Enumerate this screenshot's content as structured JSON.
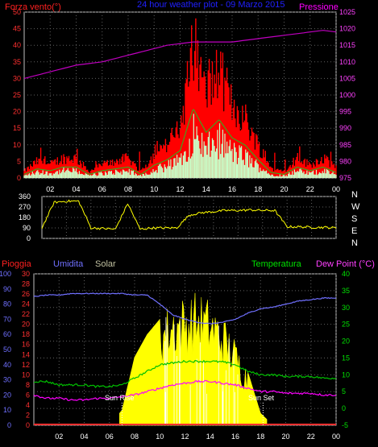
{
  "header": {
    "title": "24 hour weather plot - 09 Marzo 2015",
    "left_label": "Forza vento(°)",
    "right_label": "Pressione"
  },
  "panel3_header": {
    "rain": "Pioggia",
    "humidity": "Umidita",
    "solar": "Solar",
    "temperature": "Temperatura",
    "dewpoint": "Dew Point (°C)"
  },
  "annotations": {
    "sunrise": "Sun Rise",
    "sunset": "Sun Set"
  },
  "colors": {
    "wind_gust": "#ff0000",
    "wind_avg": "#20c020",
    "wind_low": "#c8ffc8",
    "pressure": "#c000c0",
    "direction": "#ffff00",
    "humidity": "#7070ff",
    "temperature": "#00c000",
    "dewpoint": "#ff00ff",
    "solar": "#ffff00",
    "rain": "#ff3030",
    "grid": "#606060"
  },
  "chart_data": [
    {
      "type": "area",
      "x_ticks": [
        "02",
        "04",
        "06",
        "08",
        "10",
        "12",
        "14",
        "16",
        "18",
        "20",
        "22",
        "00"
      ],
      "y_left_ticks": [
        "0",
        "5",
        "10",
        "15",
        "20",
        "25",
        "30",
        "35",
        "40",
        "45",
        "50"
      ],
      "y_right_ticks": [
        "975",
        "980",
        "985",
        "990",
        "995",
        "1000",
        "1005",
        "1010",
        "1015",
        "1020",
        "1025"
      ],
      "ylim_left": [
        0,
        50
      ],
      "ylim_right": [
        975,
        1025
      ],
      "x_hours": [
        0,
        1,
        2,
        3,
        4,
        5,
        6,
        7,
        8,
        9,
        10,
        11,
        12,
        13,
        14,
        15,
        16,
        17,
        18,
        19,
        20,
        21,
        22,
        23,
        24
      ],
      "series": [
        {
          "name": "Pressione",
          "axis": "right",
          "values": [
            1005,
            1006,
            1007,
            1008,
            1009,
            1009.5,
            1010,
            1011,
            1012,
            1013,
            1014,
            1015,
            1015.5,
            1016,
            1016,
            1016,
            1016,
            1016.5,
            1017,
            1017.5,
            1018,
            1018.5,
            1019,
            1019.5,
            1019
          ]
        },
        {
          "name": "Forza vento",
          "axis": "left",
          "values": [
            2,
            5,
            4,
            6,
            6,
            2,
            4,
            5,
            6,
            2,
            7,
            10,
            15,
            38,
            25,
            32,
            22,
            18,
            10,
            3,
            2,
            6,
            4,
            6,
            3
          ]
        }
      ]
    },
    {
      "type": "line",
      "y_ticks": [
        "360",
        "270",
        "180",
        "90",
        "0"
      ],
      "y_right_labels": [
        "N",
        "W",
        "S",
        "E",
        "N"
      ],
      "ylim": [
        0,
        360
      ],
      "x_hours": [
        0,
        1,
        2,
        3,
        4,
        5,
        6,
        7,
        8,
        9,
        10,
        11,
        12,
        13,
        14,
        15,
        16,
        17,
        18,
        19,
        20,
        21,
        22,
        23,
        24
      ],
      "values": [
        90,
        310,
        320,
        320,
        90,
        85,
        80,
        300,
        80,
        90,
        90,
        90,
        200,
        220,
        230,
        240,
        240,
        245,
        240,
        240,
        100,
        100,
        95,
        95,
        90
      ]
    },
    {
      "type": "line",
      "y_left_ticks_rain": [
        "0",
        "2",
        "4",
        "6",
        "8",
        "10",
        "12",
        "14",
        "16",
        "18",
        "20",
        "22",
        "24",
        "26",
        "28",
        "30"
      ],
      "y_left_ticks_hum": [
        "0",
        "10",
        "20",
        "30",
        "40",
        "50",
        "60",
        "70",
        "80",
        "90",
        "100"
      ],
      "y_right_ticks": [
        "-5",
        "0",
        "5",
        "10",
        "15",
        "20",
        "25",
        "30",
        "35",
        "40"
      ],
      "ylim_temp": [
        -5,
        40
      ],
      "ylim_hum": [
        0,
        100
      ],
      "x_hours": [
        0,
        1,
        2,
        3,
        4,
        5,
        6,
        7,
        8,
        9,
        10,
        11,
        12,
        13,
        14,
        15,
        16,
        17,
        18,
        19,
        20,
        21,
        22,
        23,
        24
      ],
      "series": [
        {
          "name": "Umidita",
          "values": [
            85,
            86,
            86,
            87,
            87,
            87,
            87,
            87,
            86,
            86,
            80,
            73,
            70,
            68,
            67,
            68,
            70,
            74,
            77,
            78,
            80,
            82,
            83,
            84,
            84
          ]
        },
        {
          "name": "Temperatura",
          "values": [
            8,
            8,
            7,
            7,
            7,
            6.5,
            6.5,
            7,
            9,
            11,
            13,
            13.5,
            14,
            14,
            14,
            13.8,
            13,
            11,
            10,
            10,
            9.5,
            9.5,
            9.5,
            9,
            9
          ]
        },
        {
          "name": "Dew Point",
          "values": [
            4,
            3,
            3,
            2.5,
            2.5,
            3,
            3,
            3.5,
            4,
            5,
            6,
            7,
            7.5,
            8,
            8,
            7.5,
            7,
            6,
            5,
            5,
            4.5,
            4.5,
            4.5,
            4,
            4
          ]
        },
        {
          "name": "Solar",
          "values": [
            0,
            0,
            0,
            0,
            0,
            0,
            0,
            10,
            45,
            60,
            70,
            80,
            82,
            85,
            80,
            70,
            55,
            35,
            8,
            0,
            0,
            0,
            0,
            0,
            0
          ]
        },
        {
          "name": "Pioggia",
          "values": [
            0,
            0,
            0,
            0,
            0,
            0,
            0,
            0,
            0,
            0,
            0,
            0,
            0,
            0,
            0,
            0,
            0,
            0,
            0,
            0,
            0,
            0,
            0,
            0,
            0
          ]
        }
      ]
    }
  ]
}
